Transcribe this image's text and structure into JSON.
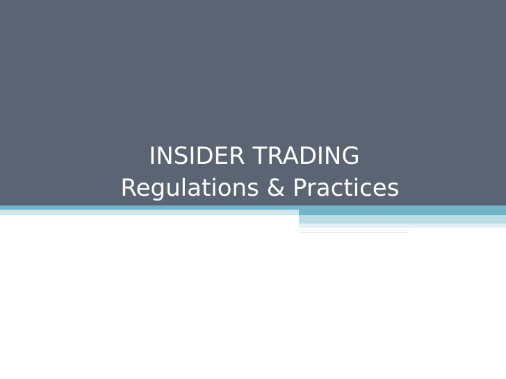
{
  "slide": {
    "title_line1": "INSIDER TRADING",
    "title_line2": "Regulations & Practices"
  },
  "colors": {
    "title_background": "#5b6473",
    "accent": "#6fb4c9",
    "accent_light": "#cfe6ee",
    "title_text": "#ffffff"
  }
}
